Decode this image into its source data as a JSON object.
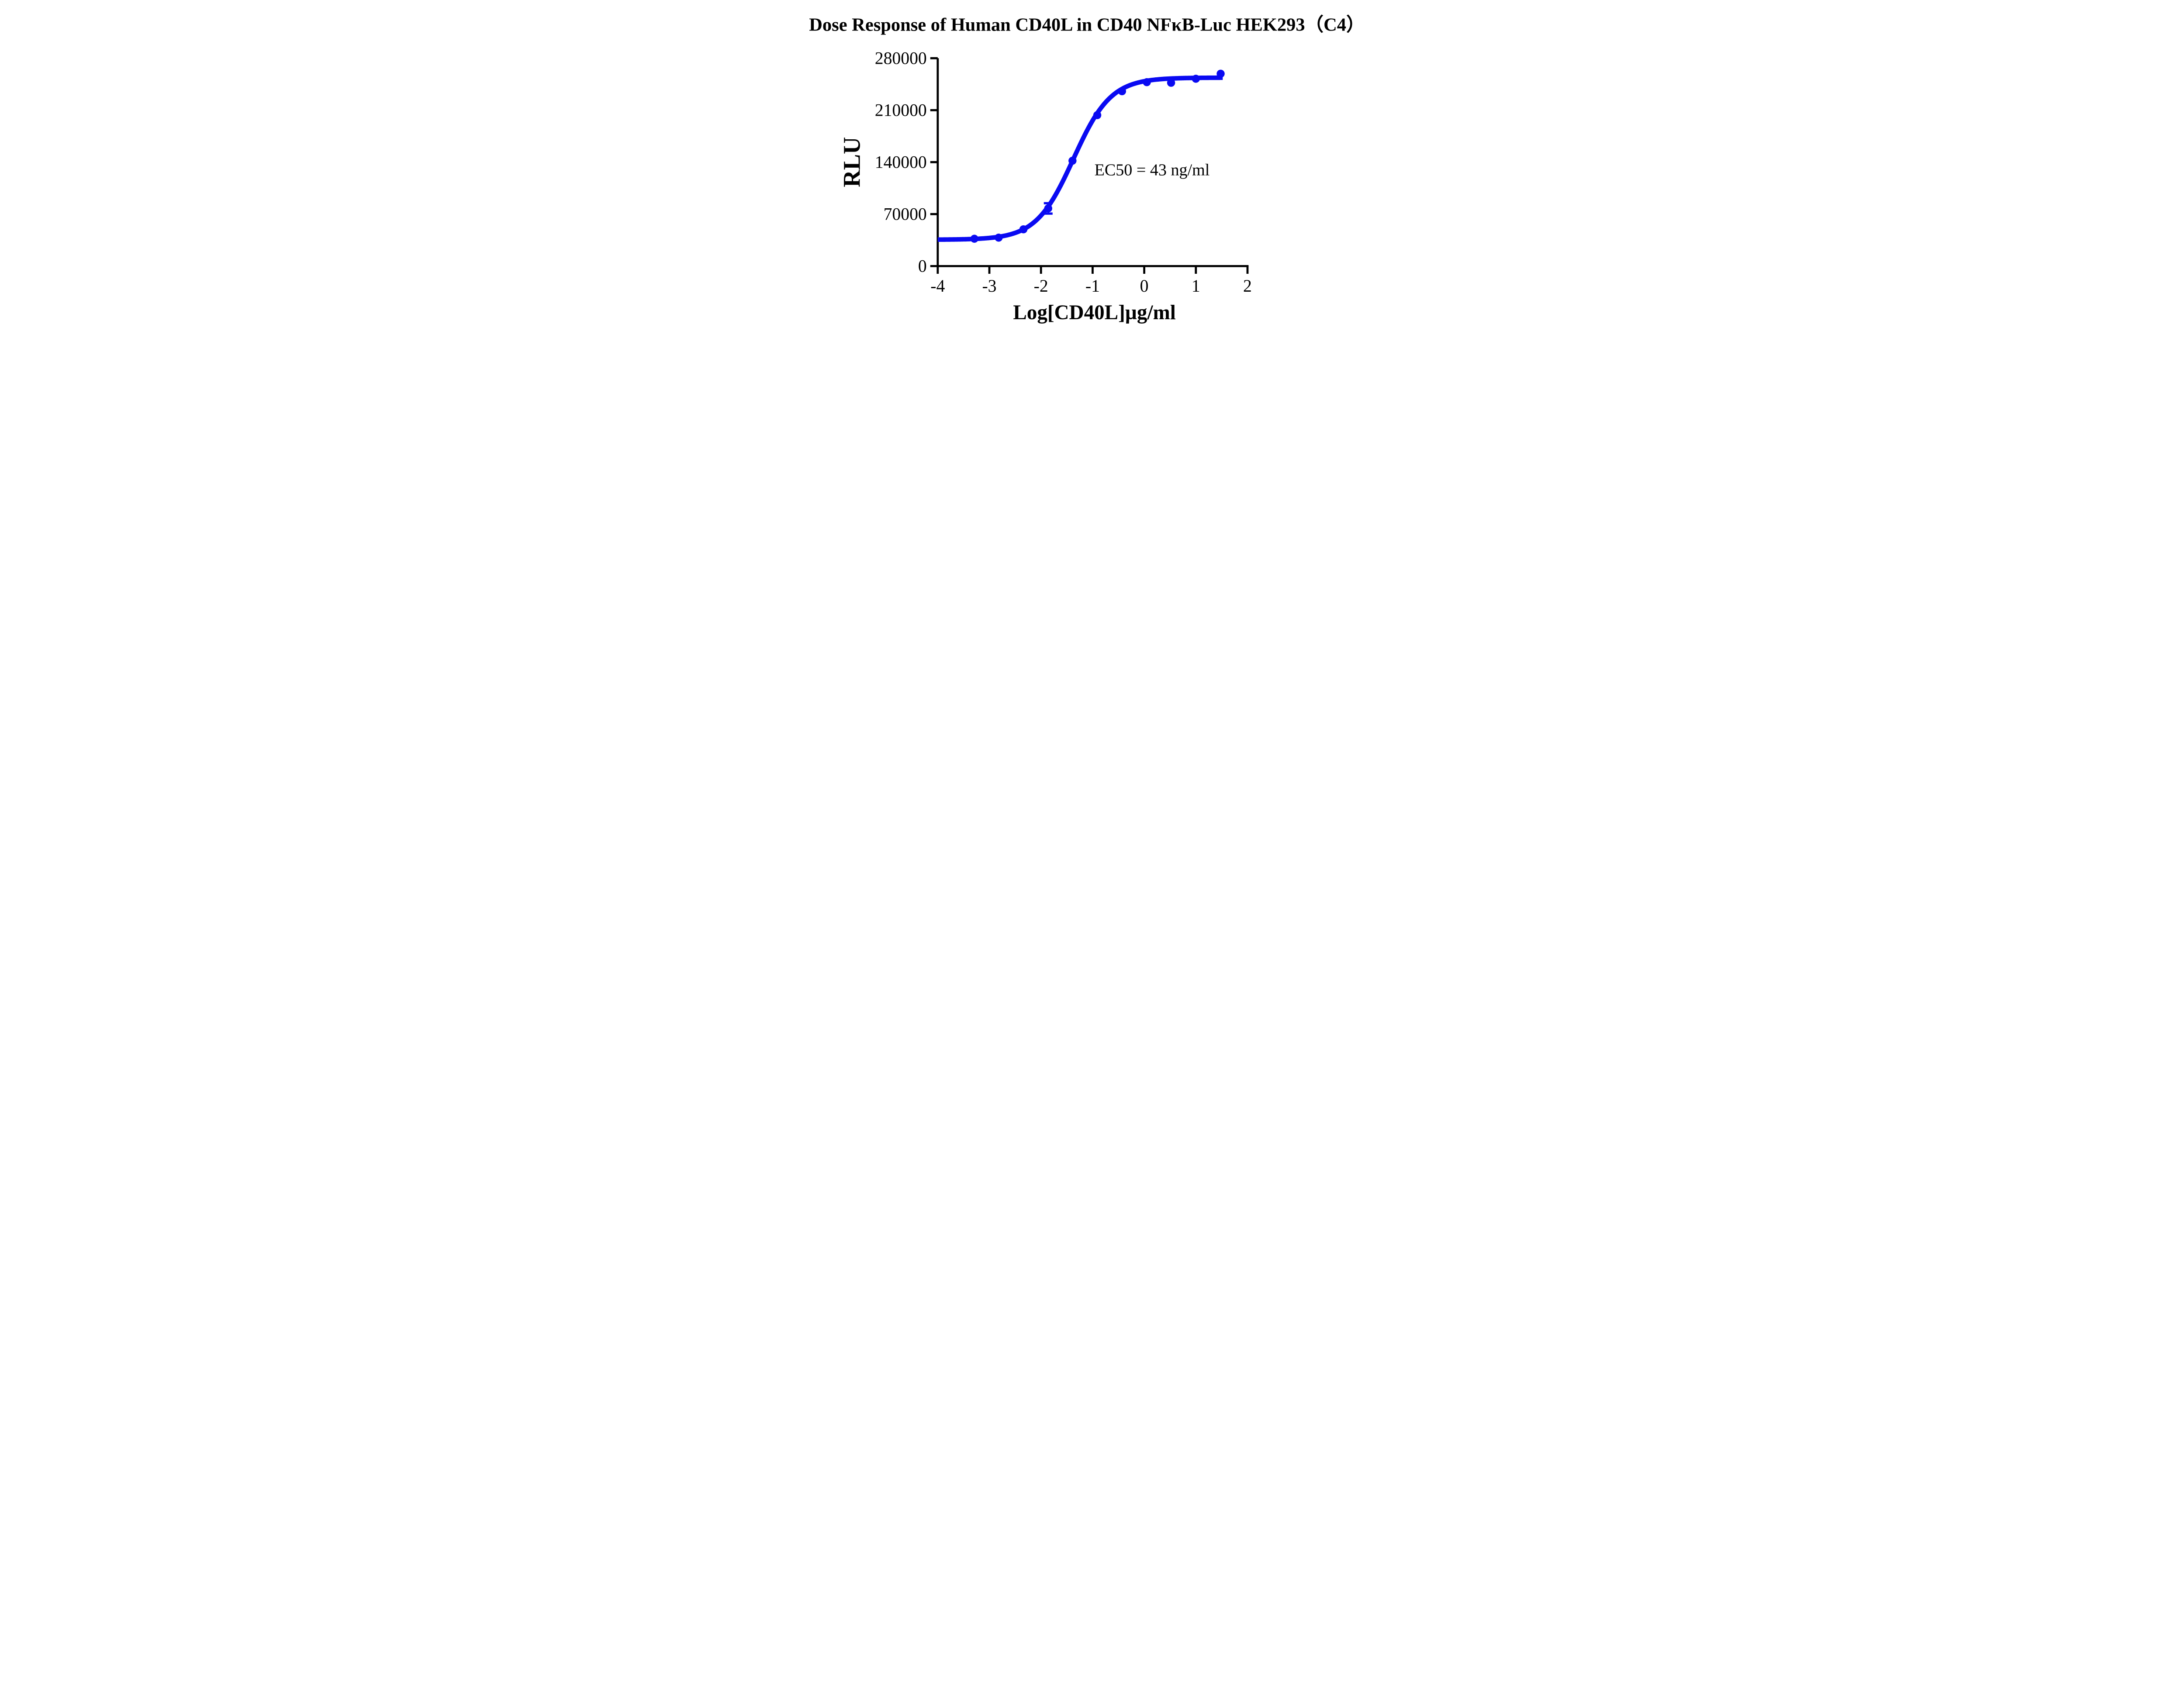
{
  "figure": {
    "title": "Dose Response of Human CD40L in CD40 NFκB-Luc HEK293（C4）"
  },
  "chart_data": {
    "type": "scatter",
    "title": "Dose Response of Human CD40L in CD40 NFκB-Luc HEK293（C4）",
    "xlabel": "Log[CD40L]µg/ml",
    "ylabel": "RLU",
    "annotation": "EC50 = 43 ng/ml",
    "ec50_ng_ml": 43,
    "xlim": [
      -4,
      2
    ],
    "ylim": [
      0,
      280000
    ],
    "x_ticks": [
      -4,
      -3,
      -2,
      -1,
      0,
      1,
      2
    ],
    "y_ticks": [
      0,
      70000,
      140000,
      210000,
      280000
    ],
    "grid": false,
    "legend_position": "none",
    "series": [
      {
        "name": "Human CD40L",
        "color": "#0a0af2",
        "marker": "circle",
        "points": [
          {
            "x": -3.29,
            "y": 36800
          },
          {
            "x": -2.82,
            "y": 38300
          },
          {
            "x": -2.34,
            "y": 49500
          },
          {
            "x": -1.86,
            "y": 77700,
            "err": 7000
          },
          {
            "x": -1.39,
            "y": 141900
          },
          {
            "x": -0.91,
            "y": 203300
          },
          {
            "x": -0.43,
            "y": 235500
          },
          {
            "x": 0.05,
            "y": 247700
          },
          {
            "x": 0.52,
            "y": 246900
          },
          {
            "x": 1.0,
            "y": 252300
          },
          {
            "x": 1.48,
            "y": 259100
          }
        ],
        "fit": {
          "model": "4PL",
          "bottom": 35500,
          "top": 253800,
          "logEC50": -1.37,
          "hill": 1.2,
          "x_start": -4,
          "x_end": 1.52
        }
      }
    ]
  }
}
